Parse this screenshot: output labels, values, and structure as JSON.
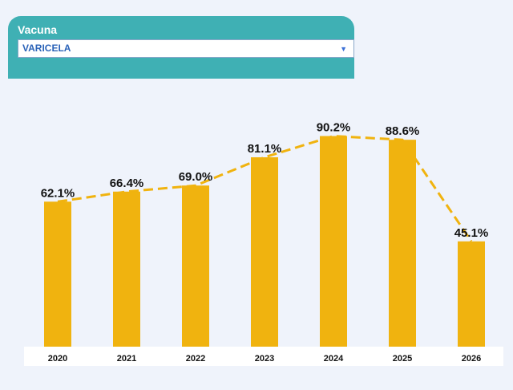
{
  "filter": {
    "label": "Vacuna",
    "selected": "VARICELA",
    "caret_icon": "chevron-down-icon"
  },
  "colors": {
    "bar": "#f0b30f",
    "line": "#f0b30f",
    "filter_header": "#3fb0b4",
    "filter_value": "#2b63b8"
  },
  "chart_data": {
    "type": "bar",
    "categories": [
      "2020",
      "2021",
      "2022",
      "2023",
      "2024",
      "2025",
      "2026"
    ],
    "values": [
      62.1,
      66.4,
      69.0,
      81.1,
      90.2,
      88.6,
      45.1
    ],
    "labels": [
      "62.1%",
      "66.4%",
      "69.0%",
      "81.1%",
      "90.2%",
      "88.6%",
      "45.1%"
    ],
    "overlay": "dashed-line",
    "title": "",
    "xlabel": "",
    "ylabel": "",
    "ylim": [
      0,
      100
    ],
    "grid": false,
    "legend": "none"
  }
}
